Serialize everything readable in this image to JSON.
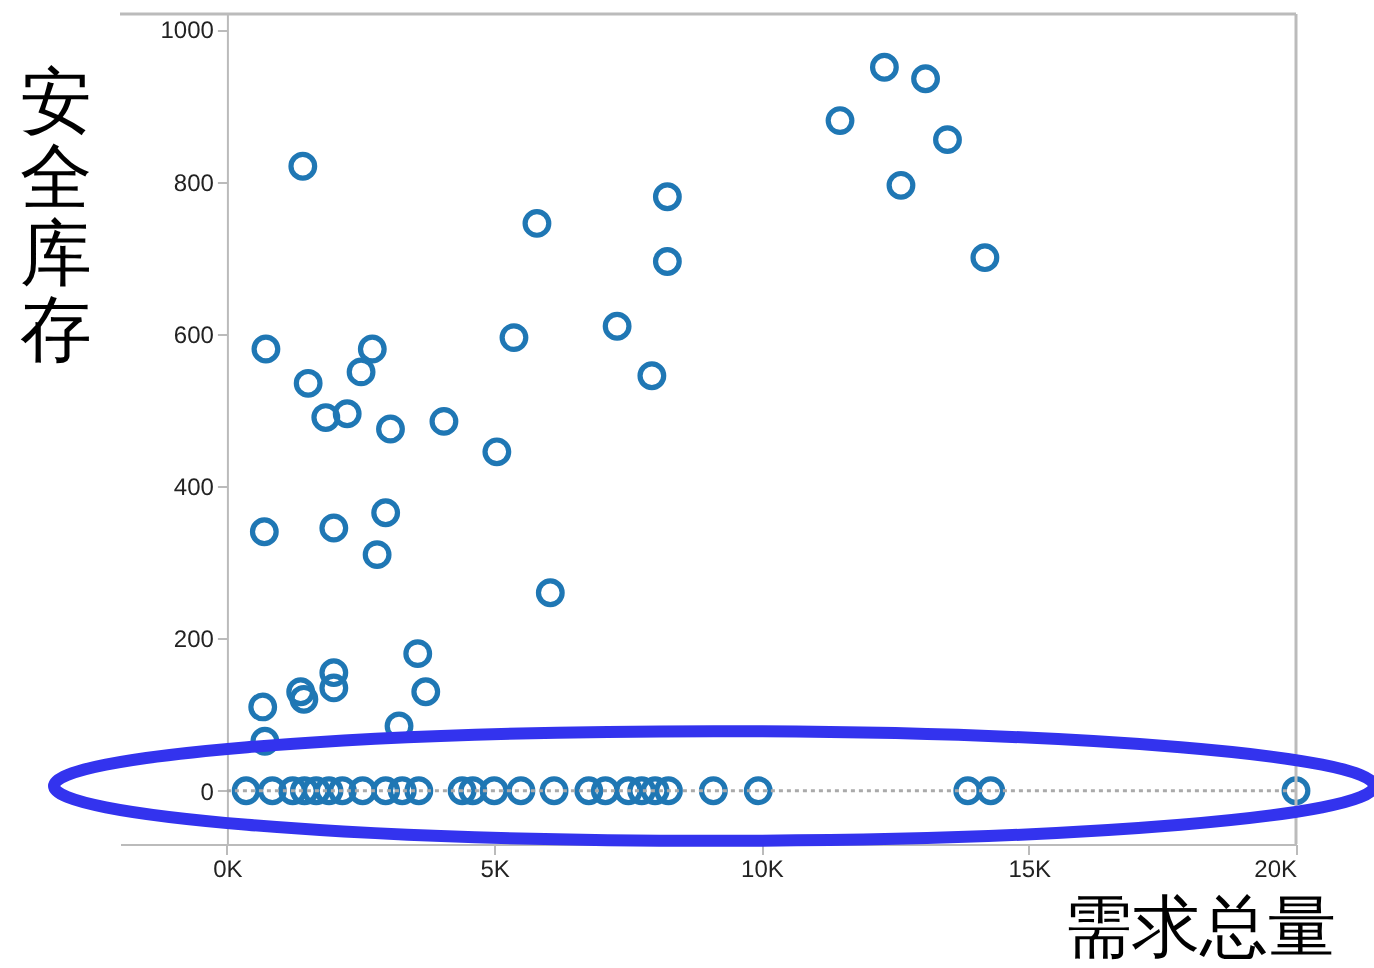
{
  "chart_data": {
    "type": "scatter",
    "xlabel": "需求总量",
    "ylabel": "安全库存",
    "xlim": [
      -2000,
      20000
    ],
    "ylim": [
      -70,
      1020
    ],
    "xticks": [
      {
        "value": 0,
        "label": "0K"
      },
      {
        "value": 5000,
        "label": "5K"
      },
      {
        "value": 10000,
        "label": "10K"
      },
      {
        "value": 15000,
        "label": "15K"
      },
      {
        "value": 20000,
        "label": "20K"
      }
    ],
    "yticks": [
      0,
      200,
      400,
      600,
      800,
      1000
    ],
    "grid": false,
    "marker": "circle",
    "ref_lines": [
      {
        "axis": "y",
        "value": 0,
        "color": "#aaaaaa",
        "line_style": "dotted"
      }
    ],
    "series": [
      {
        "color": "#1f77b4",
        "x": [
          1420,
          730,
          1520,
          1850,
          2250,
          2720,
          2510,
          3060,
          4060,
          5050,
          5370,
          5800,
          7300,
          7950,
          8240,
          8240,
          12300,
          13070,
          11470,
          13480,
          12610,
          14180,
          700,
          2000,
          2970,
          2810,
          6050,
          3570,
          2000,
          1380,
          1440,
          2000,
          3720,
          670,
          3220,
          710,
          360,
          850,
          1230,
          1450,
          1670,
          1910,
          2160,
          2540,
          2970,
          3280,
          3590,
          4400,
          4600,
          5000,
          5500,
          6120,
          6770,
          7080,
          7510,
          7760,
          8010,
          8260,
          9100,
          9940,
          13860,
          14290,
          20000
        ],
        "values": [
          820,
          580,
          535,
          490,
          495,
          580,
          550,
          475,
          485,
          445,
          595,
          745,
          610,
          545,
          695,
          780,
          950,
          935,
          880,
          855,
          795,
          700,
          340,
          345,
          365,
          310,
          260,
          180,
          155,
          130,
          120,
          135,
          130,
          110,
          85,
          65,
          0,
          0,
          0,
          0,
          0,
          0,
          0,
          0,
          0,
          0,
          0,
          0,
          0,
          0,
          0,
          0,
          0,
          0,
          0,
          0,
          0,
          0,
          0,
          0,
          0,
          0,
          0
        ]
      }
    ]
  }
}
